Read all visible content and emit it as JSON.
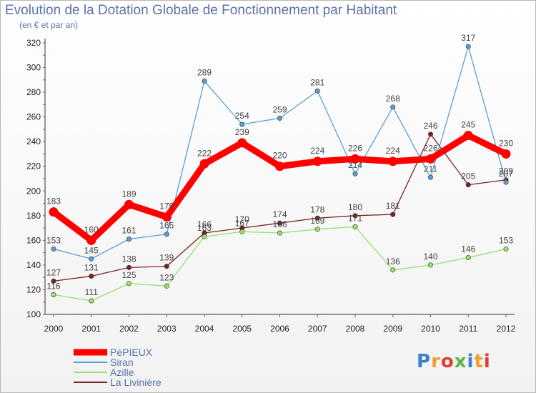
{
  "title": "Evolution de la Dotation Globale de Fonctionnement par Habitant",
  "subtitle": "(en € et par an)",
  "logo": "Proxiti",
  "chart_data": {
    "type": "line",
    "x": [
      "2000",
      "2001",
      "2002",
      "2003",
      "2004",
      "2005",
      "2006",
      "2007",
      "2008",
      "2009",
      "2010",
      "2011",
      "2012"
    ],
    "ylim": [
      100,
      320
    ],
    "yticks": [
      100,
      120,
      140,
      160,
      180,
      200,
      220,
      240,
      260,
      280,
      300,
      320
    ],
    "grid": false,
    "legend_position": "bottom-left",
    "series": [
      {
        "name": "PéPIEUX",
        "color": "#ff0000",
        "values": [
          183,
          160,
          189,
          179,
          222,
          239,
          220,
          224,
          226,
          224,
          226,
          245,
          230
        ],
        "labels": [
          "183",
          "160",
          "189",
          "179",
          "222",
          "239",
          "220",
          "224",
          "226",
          "224",
          "226",
          "245",
          "230"
        ]
      },
      {
        "name": "Siran",
        "color": "#5a9fd4",
        "values": [
          153,
          145,
          161,
          165,
          289,
          254,
          259,
          281,
          214,
          268,
          211,
          317,
          207
        ],
        "labels": [
          "153",
          "145",
          "161",
          "165",
          "289",
          "254",
          "259",
          "281",
          "214",
          "268",
          "211",
          "317",
          "207"
        ]
      },
      {
        "name": "Azille",
        "color": "#99e06e",
        "values": [
          116,
          111,
          125,
          123,
          163,
          167,
          166,
          169,
          171,
          136,
          140,
          146,
          153
        ],
        "labels": [
          "116",
          "111",
          "125",
          "123",
          "163",
          "167",
          "166",
          "169",
          "171",
          "136",
          "140",
          "146",
          "153"
        ]
      },
      {
        "name": "La Livinière",
        "color": "#7b2222",
        "values": [
          127,
          131,
          138,
          139,
          166,
          170,
          174,
          178,
          180,
          181,
          246,
          205,
          209
        ],
        "labels": [
          "127",
          "131",
          "138",
          "139",
          "166",
          "170",
          "174",
          "178",
          "180",
          "181",
          "246",
          "205",
          "209"
        ]
      }
    ]
  }
}
